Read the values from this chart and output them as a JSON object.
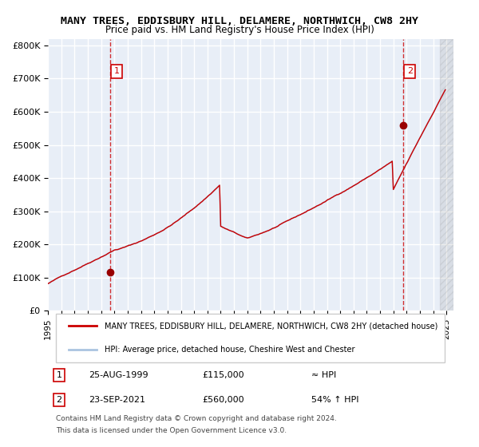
{
  "title": "MANY TREES, EDDISBURY HILL, DELAMERE, NORTHWICH, CW8 2HY",
  "subtitle": "Price paid vs. HM Land Registry's House Price Index (HPI)",
  "ylabel": "",
  "xlim_start": 1995.0,
  "xlim_end": 2025.5,
  "ylim_bottom": 0,
  "ylim_top": 820000,
  "yticks": [
    0,
    100000,
    200000,
    300000,
    400000,
    500000,
    600000,
    700000,
    800000
  ],
  "ytick_labels": [
    "£0",
    "£100K",
    "£200K",
    "£300K",
    "£400K",
    "£500K",
    "£600K",
    "£700K",
    "£800K"
  ],
  "xtick_years": [
    1995,
    1996,
    1997,
    1998,
    1999,
    2000,
    2001,
    2002,
    2003,
    2004,
    2005,
    2006,
    2007,
    2008,
    2009,
    2010,
    2011,
    2012,
    2013,
    2014,
    2015,
    2016,
    2017,
    2018,
    2019,
    2020,
    2021,
    2022,
    2023,
    2024,
    2025
  ],
  "background_color": "#e8eef7",
  "plot_bg_color": "#e8eef7",
  "grid_color": "#ffffff",
  "hpi_line_color": "#aac4e0",
  "price_line_color": "#cc0000",
  "sale1_x": 1999.65,
  "sale1_y": 115000,
  "sale1_label": "1",
  "sale1_date": "25-AUG-1999",
  "sale1_price": "£115,000",
  "sale1_hpi": "≈ HPI",
  "sale2_x": 2021.73,
  "sale2_y": 560000,
  "sale2_label": "2",
  "sale2_date": "23-SEP-2021",
  "sale2_price": "£560,000",
  "sale2_hpi": "54% ↑ HPI",
  "legend_line1": "MANY TREES, EDDISBURY HILL, DELAMERE, NORTHWICH, CW8 2HY (detached house)",
  "legend_line2": "HPI: Average price, detached house, Cheshire West and Chester",
  "footer1": "Contains HM Land Registry data © Crown copyright and database right 2024.",
  "footer2": "This data is licensed under the Open Government Licence v3.0."
}
